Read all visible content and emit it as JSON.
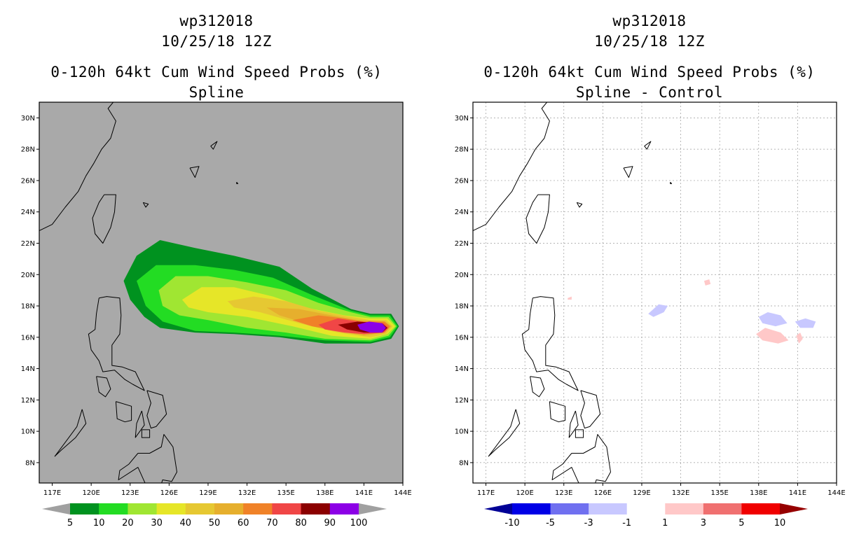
{
  "colors": {
    "ocean_gray": "#a9a9a9",
    "panel_white": "#ffffff",
    "coast": "#000000",
    "grid": "#9a9a9a",
    "prob_levels": [
      "#00921f",
      "#23dc23",
      "#a0e632",
      "#e6e628",
      "#e6c832",
      "#e6af2d",
      "#f08228",
      "#f04646",
      "#8b0000",
      "#8c00e6"
    ],
    "diff_levels": [
      "#000096",
      "#0000e6",
      "#7070f0",
      "#c8c8ff",
      "#ffffff",
      "#ffc8c8",
      "#f07070",
      "#f00000",
      "#960000"
    ],
    "cb_arrow_gray": "#a0a0a0"
  },
  "left_panel": {
    "storm_id": "wp312018",
    "date": "10/25/18 12Z",
    "product": "0-120h 64kt Cum Wind Speed Probs (%)",
    "subtitle": "Spline"
  },
  "right_panel": {
    "storm_id": "wp312018",
    "date": "10/25/18 12Z",
    "product": "0-120h 64kt Cum Wind Speed Probs (%)",
    "subtitle": "Spline - Control"
  },
  "chart_data": [
    {
      "type": "heatmap",
      "title": "0-120h 64kt Cum Wind Speed Probs (%) - Spline",
      "lon_range": [
        116,
        144
      ],
      "lat_range": [
        6.7,
        31
      ],
      "x_ticks": [
        117,
        120,
        123,
        126,
        129,
        132,
        135,
        138,
        141,
        144
      ],
      "x_tick_labels": [
        "117E",
        "120E",
        "123E",
        "126E",
        "129E",
        "132E",
        "135E",
        "138E",
        "141E",
        "144E"
      ],
      "y_ticks": [
        8,
        10,
        12,
        14,
        16,
        18,
        20,
        22,
        24,
        26,
        28,
        30
      ],
      "y_tick_labels": [
        "8N",
        "10N",
        "12N",
        "14N",
        "16N",
        "18N",
        "20N",
        "22N",
        "24N",
        "26N",
        "28N",
        "30N"
      ],
      "colorbar_labels": [
        "5",
        "10",
        "20",
        "30",
        "40",
        "50",
        "60",
        "70",
        "80",
        "90",
        "100"
      ],
      "contours": [
        {
          "level": 5,
          "lonlat": [
            [
              122.5,
              19.6
            ],
            [
              123.5,
              21.2
            ],
            [
              125.3,
              22.2
            ],
            [
              128,
              21.7
            ],
            [
              131,
              21.2
            ],
            [
              134.5,
              20.5
            ],
            [
              137,
              19.1
            ],
            [
              140,
              17.8
            ],
            [
              141.5,
              17.5
            ],
            [
              143.1,
              17.5
            ],
            [
              143.7,
              16.7
            ],
            [
              143.1,
              15.9
            ],
            [
              141.5,
              15.6
            ],
            [
              138,
              15.6
            ],
            [
              134.5,
              16.0
            ],
            [
              131,
              16.2
            ],
            [
              128,
              16.3
            ],
            [
              125.3,
              16.6
            ],
            [
              124.1,
              17.3
            ],
            [
              123.0,
              18.4
            ],
            [
              122.5,
              19.6
            ]
          ]
        },
        {
          "level": 10,
          "lonlat": [
            [
              123.5,
              19.6
            ],
            [
              125.0,
              20.6
            ],
            [
              128,
              20.6
            ],
            [
              131,
              20.3
            ],
            [
              134,
              19.8
            ],
            [
              137,
              18.7
            ],
            [
              140,
              17.7
            ],
            [
              141.5,
              17.4
            ],
            [
              143.0,
              17.4
            ],
            [
              143.6,
              16.7
            ],
            [
              143.0,
              16.0
            ],
            [
              141.5,
              15.7
            ],
            [
              138,
              15.8
            ],
            [
              134.5,
              16.1
            ],
            [
              131,
              16.3
            ],
            [
              128,
              16.4
            ],
            [
              125.5,
              17.0
            ],
            [
              124.2,
              18.0
            ],
            [
              123.5,
              19.6
            ]
          ]
        },
        {
          "level": 20,
          "lonlat": [
            [
              125.2,
              19.0
            ],
            [
              126.5,
              19.9
            ],
            [
              129,
              19.9
            ],
            [
              132,
              19.5
            ],
            [
              135,
              19.0
            ],
            [
              137.5,
              18.2
            ],
            [
              140,
              17.6
            ],
            [
              141.5,
              17.3
            ],
            [
              142.9,
              17.3
            ],
            [
              143.5,
              16.7
            ],
            [
              142.9,
              16.1
            ],
            [
              141.5,
              15.8
            ],
            [
              138,
              15.9
            ],
            [
              135,
              16.3
            ],
            [
              132,
              16.6
            ],
            [
              129,
              17.1
            ],
            [
              126.8,
              17.4
            ],
            [
              125.5,
              18.0
            ],
            [
              125.2,
              19.0
            ]
          ]
        },
        {
          "level": 30,
          "lonlat": [
            [
              127.0,
              18.4
            ],
            [
              128.5,
              19.2
            ],
            [
              131,
              19.2
            ],
            [
              134,
              18.6
            ],
            [
              136.5,
              17.9
            ],
            [
              139.5,
              17.4
            ],
            [
              141.5,
              17.2
            ],
            [
              142.8,
              17.2
            ],
            [
              143.4,
              16.7
            ],
            [
              142.8,
              16.2
            ],
            [
              141.5,
              15.9
            ],
            [
              138.5,
              16.1
            ],
            [
              135.5,
              16.7
            ],
            [
              132,
              17.3
            ],
            [
              129,
              17.6
            ],
            [
              127.5,
              17.9
            ],
            [
              127.0,
              18.4
            ]
          ]
        },
        {
          "level": 40,
          "lonlat": [
            [
              130.5,
              18.3
            ],
            [
              132.5,
              18.6
            ],
            [
              135,
              18.3
            ],
            [
              137.5,
              17.7
            ],
            [
              140,
              17.3
            ],
            [
              141.5,
              17.1
            ],
            [
              142.7,
              17.1
            ],
            [
              143.2,
              16.7
            ],
            [
              142.7,
              16.2
            ],
            [
              141.5,
              16.0
            ],
            [
              139,
              16.3
            ],
            [
              136,
              16.9
            ],
            [
              133,
              17.6
            ],
            [
              131,
              17.9
            ],
            [
              130.5,
              18.3
            ]
          ]
        },
        {
          "level": 50,
          "lonlat": [
            [
              133.5,
              17.9
            ],
            [
              136,
              17.8
            ],
            [
              138.5,
              17.4
            ],
            [
              140.5,
              17.1
            ],
            [
              142.6,
              17.0
            ],
            [
              143.1,
              16.7
            ],
            [
              142.6,
              16.3
            ],
            [
              141,
              16.1
            ],
            [
              139,
              16.4
            ],
            [
              136.5,
              16.9
            ],
            [
              134.5,
              17.4
            ],
            [
              133.5,
              17.9
            ]
          ]
        },
        {
          "level": 60,
          "lonlat": [
            [
              135.5,
              17.1
            ],
            [
              137.5,
              17.4
            ],
            [
              139.5,
              17.2
            ],
            [
              141,
              17.0
            ],
            [
              142.6,
              17.0
            ],
            [
              143.0,
              16.7
            ],
            [
              142.6,
              16.3
            ],
            [
              141,
              16.2
            ],
            [
              139,
              16.4
            ],
            [
              137,
              16.7
            ],
            [
              135.5,
              17.1
            ]
          ]
        },
        {
          "level": 70,
          "lonlat": [
            [
              137.5,
              16.8
            ],
            [
              139,
              17.2
            ],
            [
              140.5,
              17.0
            ],
            [
              142.5,
              16.9
            ],
            [
              142.9,
              16.6
            ],
            [
              142.5,
              16.3
            ],
            [
              141,
              16.2
            ],
            [
              139.5,
              16.3
            ],
            [
              138,
              16.5
            ],
            [
              137.5,
              16.8
            ]
          ]
        },
        {
          "level": 80,
          "lonlat": [
            [
              139,
              16.8
            ],
            [
              140.5,
              17.0
            ],
            [
              142.4,
              16.9
            ],
            [
              142.8,
              16.6
            ],
            [
              142.4,
              16.3
            ],
            [
              141,
              16.3
            ],
            [
              139.7,
              16.5
            ],
            [
              139,
              16.8
            ]
          ]
        },
        {
          "level": 90,
          "lonlat": [
            [
              140.5,
              16.8
            ],
            [
              141.4,
              17.0
            ],
            [
              142.4,
              16.9
            ],
            [
              142.7,
              16.6
            ],
            [
              142.4,
              16.3
            ],
            [
              141.5,
              16.3
            ],
            [
              140.7,
              16.5
            ],
            [
              140.5,
              16.8
            ]
          ]
        }
      ]
    },
    {
      "type": "heatmap",
      "title": "0-120h 64kt Cum Wind Speed Probs (%) - Spline - Control",
      "lon_range": [
        116,
        144
      ],
      "lat_range": [
        6.7,
        31
      ],
      "x_ticks": [
        117,
        120,
        123,
        126,
        129,
        132,
        135,
        138,
        141,
        144
      ],
      "x_tick_labels": [
        "117E",
        "120E",
        "123E",
        "126E",
        "129E",
        "132E",
        "135E",
        "138E",
        "141E",
        "144E"
      ],
      "y_ticks": [
        8,
        10,
        12,
        14,
        16,
        18,
        20,
        22,
        24,
        26,
        28,
        30
      ],
      "y_tick_labels": [
        "8N",
        "10N",
        "12N",
        "14N",
        "16N",
        "18N",
        "20N",
        "22N",
        "24N",
        "26N",
        "28N",
        "30N"
      ],
      "colorbar_labels": [
        "-10",
        "-5",
        "-3",
        "-1",
        "1",
        "3",
        "5",
        "10"
      ],
      "anomalies": [
        {
          "sign": "positive",
          "level": 1,
          "lonlat": [
            [
              133.8,
              19.6
            ],
            [
              134.2,
              19.7
            ],
            [
              134.3,
              19.4
            ],
            [
              133.9,
              19.3
            ],
            [
              133.8,
              19.6
            ]
          ]
        },
        {
          "sign": "positive",
          "level": 1,
          "lonlat": [
            [
              123.3,
              18.5
            ],
            [
              123.6,
              18.6
            ],
            [
              123.6,
              18.4
            ],
            [
              123.3,
              18.4
            ],
            [
              123.3,
              18.5
            ]
          ]
        },
        {
          "sign": "negative",
          "level": -1,
          "lonlat": [
            [
              129.5,
              17.5
            ],
            [
              130.3,
              18.1
            ],
            [
              131.0,
              18.0
            ],
            [
              130.7,
              17.6
            ],
            [
              129.9,
              17.3
            ],
            [
              129.5,
              17.5
            ]
          ]
        },
        {
          "sign": "negative",
          "level": -1,
          "lonlat": [
            [
              138.0,
              17.3
            ],
            [
              138.7,
              17.6
            ],
            [
              139.7,
              17.4
            ],
            [
              140.2,
              16.9
            ],
            [
              139.3,
              16.7
            ],
            [
              138.3,
              16.9
            ],
            [
              138.0,
              17.3
            ]
          ]
        },
        {
          "sign": "negative",
          "level": -1,
          "lonlat": [
            [
              140.8,
              17.0
            ],
            [
              141.6,
              17.2
            ],
            [
              142.4,
              17.0
            ],
            [
              142.2,
              16.6
            ],
            [
              141.2,
              16.6
            ],
            [
              140.8,
              17.0
            ]
          ]
        },
        {
          "sign": "positive",
          "level": 1,
          "lonlat": [
            [
              137.8,
              16.2
            ],
            [
              138.5,
              16.6
            ],
            [
              139.7,
              16.3
            ],
            [
              140.3,
              15.8
            ],
            [
              139.5,
              15.6
            ],
            [
              138.3,
              15.8
            ],
            [
              137.8,
              16.2
            ]
          ]
        },
        {
          "sign": "positive",
          "level": 1,
          "lonlat": [
            [
              140.9,
              16.1
            ],
            [
              141.2,
              16.3
            ],
            [
              141.4,
              15.9
            ],
            [
              141.1,
              15.6
            ],
            [
              140.9,
              16.1
            ]
          ]
        }
      ]
    }
  ]
}
